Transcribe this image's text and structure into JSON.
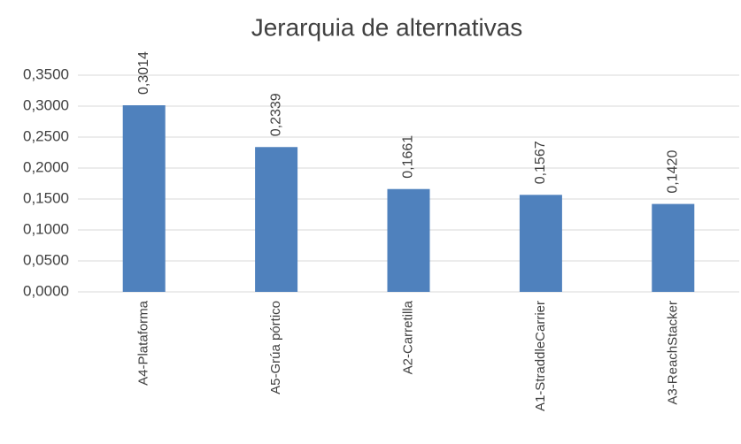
{
  "chart_data": {
    "type": "bar",
    "title": "Jerarquia de alternativas",
    "categories": [
      "A4-Plataforma",
      "A5-Grúa pórtico",
      "A2-Carretilla",
      "A1-StraddleCarrier",
      "A3-ReachStacker"
    ],
    "values": [
      0.3014,
      0.2339,
      0.1661,
      0.1567,
      0.142
    ],
    "value_labels": [
      "0,3014",
      "0,2339",
      "0,1661",
      "0,1567",
      "0,1420"
    ],
    "color": "#4f81bd",
    "ylim": [
      0,
      0.35
    ],
    "yticks": [
      {
        "value": 0,
        "label": "0,0000"
      },
      {
        "value": 0.05,
        "label": "0,0500"
      },
      {
        "value": 0.1,
        "label": "0,1000"
      },
      {
        "value": 0.15,
        "label": "0,1500"
      },
      {
        "value": 0.2,
        "label": "0,2000"
      },
      {
        "value": 0.25,
        "label": "0,2500"
      },
      {
        "value": 0.3,
        "label": "0,3000"
      },
      {
        "value": 0.35,
        "label": "0,3500"
      }
    ],
    "grid": true
  }
}
